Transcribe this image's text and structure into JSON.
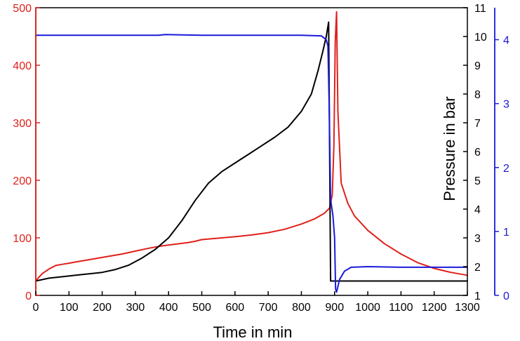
{
  "chart_data": {
    "type": "line",
    "xlabel": "Time in min",
    "ylabel_pressure": "Pressure in bar",
    "xlim": [
      0,
      1300
    ],
    "x_ticks": [
      0,
      100,
      200,
      300,
      400,
      500,
      600,
      700,
      800,
      900,
      1000,
      1100,
      1200,
      1300
    ],
    "axes": {
      "left": {
        "range": [
          0,
          500
        ],
        "ticks": [
          0,
          100,
          200,
          300,
          400,
          500
        ],
        "color": "#e0201b"
      },
      "right1": {
        "range": [
          1,
          11
        ],
        "ticks": [
          1,
          2,
          3,
          4,
          5,
          6,
          7,
          8,
          9,
          10,
          11
        ],
        "label": "Pressure in bar",
        "color": "#000000"
      },
      "right2": {
        "range": [
          0,
          4.5
        ],
        "ticks": [
          0,
          1,
          2,
          3,
          4
        ],
        "color": "#1a1adb"
      }
    },
    "series": [
      {
        "axis": "left",
        "color": "#e0201b",
        "x": [
          0,
          10,
          20,
          40,
          60,
          80,
          100,
          120,
          150,
          180,
          200,
          240,
          260,
          300,
          340,
          380,
          420,
          460,
          480,
          500,
          560,
          600,
          650,
          700,
          750,
          800,
          840,
          870,
          885,
          893,
          898,
          902,
          906,
          910,
          920,
          940,
          960,
          1000,
          1050,
          1100,
          1150,
          1200,
          1250,
          1300
        ],
        "y": [
          25,
          32,
          38,
          46,
          52,
          54,
          56,
          58,
          61,
          64,
          66,
          70,
          72,
          77,
          82,
          86,
          89,
          92,
          94,
          97,
          100,
          102,
          105,
          109,
          115,
          124,
          133,
          143,
          152,
          175,
          260,
          440,
          493,
          320,
          195,
          160,
          138,
          113,
          90,
          72,
          57,
          47,
          40,
          35
        ]
      },
      {
        "axis": "right1",
        "color": "#000000",
        "x": [
          0,
          40,
          80,
          120,
          160,
          200,
          240,
          280,
          320,
          360,
          400,
          440,
          480,
          520,
          560,
          600,
          640,
          680,
          720,
          760,
          800,
          830,
          850,
          865,
          875,
          882,
          888,
          895,
          1000,
          1100,
          1200,
          1300
        ],
        "y": [
          1.5,
          1.6,
          1.65,
          1.7,
          1.75,
          1.8,
          1.9,
          2.05,
          2.3,
          2.6,
          3.0,
          3.6,
          4.3,
          4.9,
          5.3,
          5.6,
          5.9,
          6.2,
          6.5,
          6.85,
          7.4,
          8.0,
          8.8,
          9.5,
          10.0,
          10.5,
          1.5,
          1.5,
          1.5,
          1.5,
          1.5,
          1.5
        ]
      },
      {
        "axis": "right2",
        "color": "#1a1adb",
        "x": [
          0,
          100,
          200,
          300,
          370,
          390,
          500,
          600,
          700,
          800,
          860,
          875,
          880,
          884,
          888,
          895,
          900,
          903,
          906,
          915,
          930,
          950,
          1000,
          1100,
          1200,
          1300
        ],
        "y": [
          4.07,
          4.07,
          4.07,
          4.07,
          4.07,
          4.08,
          4.07,
          4.07,
          4.07,
          4.07,
          4.06,
          4.0,
          3.9,
          2.9,
          1.5,
          1.25,
          0.9,
          0.1,
          0.05,
          0.25,
          0.38,
          0.44,
          0.45,
          0.44,
          0.44,
          0.44
        ]
      }
    ]
  }
}
